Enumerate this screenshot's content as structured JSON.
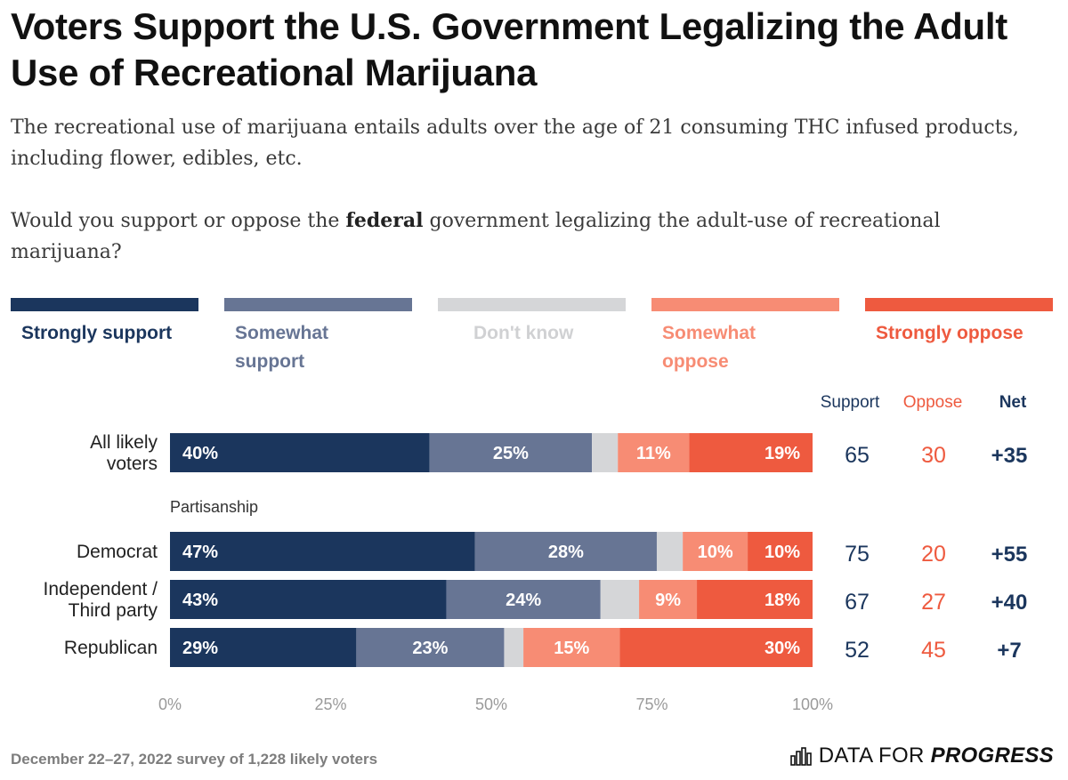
{
  "title": "Voters Support the U.S. Government Legalizing the Adult Use of Recreational Marijuana",
  "subtitle": "The recreational use of marijuana entails adults over the age of 21 consuming THC infused products, including flower, edibles, etc.",
  "question": {
    "before": "Would you support or oppose the ",
    "bold": "federal",
    "after": " government legalizing the adult-use of recreational marijuana?"
  },
  "colors": {
    "strongly_support": "#1b365d",
    "somewhat_support": "#677594",
    "dont_know": "#d5d6d8",
    "somewhat_oppose": "#f78c74",
    "strongly_oppose": "#ee5a3f",
    "support_text": "#1b365d",
    "oppose_text": "#ee5a3f"
  },
  "legend": [
    {
      "key": "strongly_support",
      "label": "Strongly support",
      "color": "#1b365d"
    },
    {
      "key": "somewhat_support",
      "label": "Somewhat support",
      "color": "#677594"
    },
    {
      "key": "dont_know",
      "label": "Don't know",
      "color": "#d5d6d8"
    },
    {
      "key": "somewhat_oppose",
      "label": "Somewhat oppose",
      "color": "#f78c74"
    },
    {
      "key": "strongly_oppose",
      "label": "Strongly oppose",
      "color": "#ee5a3f"
    }
  ],
  "column_headers": {
    "support": "Support",
    "oppose": "Oppose",
    "net": "Net"
  },
  "group_label": "Partisanship",
  "chart_data": {
    "type": "bar",
    "orientation": "horizontal",
    "stacked": true,
    "categories": [
      "All likely voters",
      "Democrat",
      "Independent / Third party",
      "Republican"
    ],
    "series": [
      {
        "name": "Strongly support",
        "values": [
          40,
          47,
          43,
          29
        ]
      },
      {
        "name": "Somewhat support",
        "values": [
          25,
          28,
          24,
          23
        ]
      },
      {
        "name": "Don't know",
        "values": [
          4,
          4,
          6,
          3
        ]
      },
      {
        "name": "Somewhat oppose",
        "values": [
          11,
          10,
          9,
          15
        ]
      },
      {
        "name": "Strongly oppose",
        "values": [
          19,
          10,
          18,
          30
        ]
      }
    ],
    "data_labels": [
      [
        "40%",
        "25%",
        "",
        "11%",
        "19%"
      ],
      [
        "47%",
        "28%",
        "",
        "10%",
        "10%"
      ],
      [
        "43%",
        "24%",
        "",
        "9%",
        "18%"
      ],
      [
        "29%",
        "23%",
        "",
        "15%",
        "30%"
      ]
    ],
    "support": [
      65,
      75,
      67,
      52
    ],
    "oppose": [
      30,
      20,
      27,
      45
    ],
    "net": [
      "+35",
      "+55",
      "+40",
      "+7"
    ],
    "xlim": [
      0,
      100
    ],
    "xticks": [
      "0%",
      "25%",
      "50%",
      "75%",
      "100%"
    ],
    "legend_position": "top",
    "grid": false
  },
  "footer": {
    "note": "December 22–27, 2022 survey of 1,228 likely voters",
    "brand_prefix": "DATA FOR ",
    "brand_bold": "PROGRESS"
  }
}
